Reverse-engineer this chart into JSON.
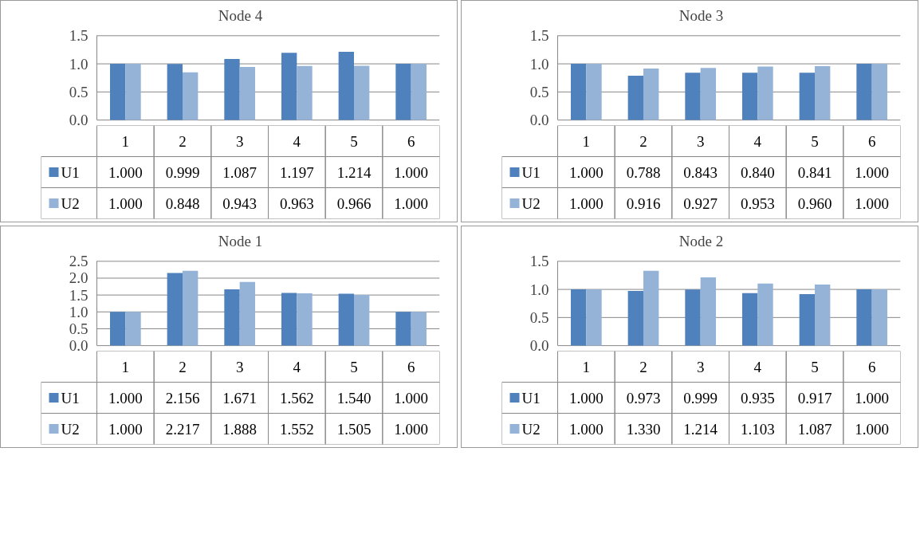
{
  "chart_data": [
    {
      "type": "bar",
      "title": "Node 4",
      "categories": [
        "1",
        "2",
        "3",
        "4",
        "5",
        "6"
      ],
      "ylim": [
        0,
        1.5
      ],
      "yticks": [
        {
          "value": 0,
          "label": "0.0"
        },
        {
          "value": 0.5,
          "label": "0.5"
        },
        {
          "value": 1,
          "label": "1.0"
        },
        {
          "value": 1.5,
          "label": "1.5"
        }
      ],
      "grid": "y",
      "legend": "bottom",
      "series": [
        {
          "name": "U1",
          "color": "#4f81bd",
          "values": [
            1.0,
            0.999,
            1.087,
            1.197,
            1.214,
            1.0
          ],
          "value_labels": [
            "1.000",
            "0.999",
            "1.087",
            "1.197",
            "1.214",
            "1.000"
          ]
        },
        {
          "name": "U2",
          "color": "#95b3d7",
          "values": [
            1.0,
            0.848,
            0.943,
            0.963,
            0.966,
            1.0
          ],
          "value_labels": [
            "1.000",
            "0.848",
            "0.943",
            "0.963",
            "0.966",
            "1.000"
          ]
        }
      ]
    },
    {
      "type": "bar",
      "title": "Node 3",
      "categories": [
        "1",
        "2",
        "3",
        "4",
        "5",
        "6"
      ],
      "ylim": [
        0,
        1.5
      ],
      "yticks": [
        {
          "value": 0,
          "label": "0.0"
        },
        {
          "value": 0.5,
          "label": "0.5"
        },
        {
          "value": 1,
          "label": "1.0"
        },
        {
          "value": 1.5,
          "label": "1.5"
        }
      ],
      "grid": "y",
      "legend": "bottom",
      "series": [
        {
          "name": "U1",
          "color": "#4f81bd",
          "values": [
            1.0,
            0.788,
            0.843,
            0.84,
            0.841,
            1.0
          ],
          "value_labels": [
            "1.000",
            "0.788",
            "0.843",
            "0.840",
            "0.841",
            "1.000"
          ]
        },
        {
          "name": "U2",
          "color": "#95b3d7",
          "values": [
            1.0,
            0.916,
            0.927,
            0.953,
            0.96,
            1.0
          ],
          "value_labels": [
            "1.000",
            "0.916",
            "0.927",
            "0.953",
            "0.960",
            "1.000"
          ]
        }
      ]
    },
    {
      "type": "bar",
      "title": "Node 1",
      "categories": [
        "1",
        "2",
        "3",
        "4",
        "5",
        "6"
      ],
      "ylim": [
        0,
        2.5
      ],
      "yticks": [
        {
          "value": 0,
          "label": "0.0"
        },
        {
          "value": 0.5,
          "label": "0.5"
        },
        {
          "value": 1,
          "label": "1.0"
        },
        {
          "value": 1.5,
          "label": "1.5"
        },
        {
          "value": 2,
          "label": "2.0"
        },
        {
          "value": 2.5,
          "label": "2.5"
        }
      ],
      "grid": "y",
      "legend": "bottom",
      "series": [
        {
          "name": "U1",
          "color": "#4f81bd",
          "values": [
            1.0,
            2.156,
            1.671,
            1.562,
            1.54,
            1.0
          ],
          "value_labels": [
            "1.000",
            "2.156",
            "1.671",
            "1.562",
            "1.540",
            "1.000"
          ]
        },
        {
          "name": "U2",
          "color": "#95b3d7",
          "values": [
            1.0,
            2.217,
            1.888,
            1.552,
            1.505,
            1.0
          ],
          "value_labels": [
            "1.000",
            "2.217",
            "1.888",
            "1.552",
            "1.505",
            "1.000"
          ]
        }
      ]
    },
    {
      "type": "bar",
      "title": "Node 2",
      "categories": [
        "1",
        "2",
        "3",
        "4",
        "5",
        "6"
      ],
      "ylim": [
        0,
        1.5
      ],
      "yticks": [
        {
          "value": 0,
          "label": "0.0"
        },
        {
          "value": 0.5,
          "label": "0.5"
        },
        {
          "value": 1,
          "label": "1.0"
        },
        {
          "value": 1.5,
          "label": "1.5"
        }
      ],
      "grid": "y",
      "legend": "bottom",
      "series": [
        {
          "name": "U1",
          "color": "#4f81bd",
          "values": [
            1.0,
            0.973,
            0.999,
            0.935,
            0.917,
            1.0
          ],
          "value_labels": [
            "1.000",
            "0.973",
            "0.999",
            "0.935",
            "0.917",
            "1.000"
          ]
        },
        {
          "name": "U2",
          "color": "#95b3d7",
          "values": [
            1.0,
            1.33,
            1.214,
            1.103,
            1.087,
            1.0
          ],
          "value_labels": [
            "1.000",
            "1.330",
            "1.214",
            "1.103",
            "1.087",
            "1.000"
          ]
        }
      ]
    }
  ]
}
